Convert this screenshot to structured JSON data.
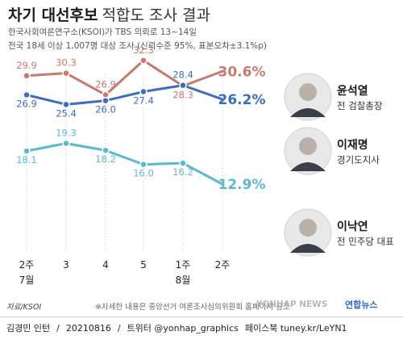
{
  "header": {
    "title_strong": "차기 대선후보",
    "title_light": "적합도 조사 결과",
    "subtitle_1": "한국사회여론연구소(KSOI)가 TBS 의뢰로 13~14일",
    "subtitle_2": "전국 18세 이상 1,007명 대상 조사 (신뢰수준 95%, 표본오차±3.1%p)"
  },
  "chart_data": {
    "type": "line",
    "categories": [
      {
        "label": "2주",
        "group": "7월"
      },
      {
        "label": "3",
        "group": ""
      },
      {
        "label": "4",
        "group": ""
      },
      {
        "label": "5",
        "group": ""
      },
      {
        "label": "1주",
        "group": "8월"
      },
      {
        "label": "2주",
        "group": ""
      }
    ],
    "series": [
      {
        "name": "윤석열",
        "role": "전 검찰총장",
        "color": "#c9786e",
        "values": [
          29.9,
          30.3,
          26.9,
          32.3,
          28.3,
          30.6
        ],
        "labels": [
          "29.9",
          "30.3",
          "26.9",
          "32.3",
          "28.3",
          "30.6%"
        ]
      },
      {
        "name": "이재명",
        "role": "경기도지사",
        "color": "#3b6cc0",
        "values": [
          26.9,
          25.4,
          26.0,
          27.4,
          28.4,
          26.2
        ],
        "labels": [
          "26.9",
          "25.4",
          "26.0",
          "27.4",
          "28.4",
          "26.2%"
        ]
      },
      {
        "name": "이낙연",
        "role": "전 민주당 대표",
        "color": "#5ab8cf",
        "values": [
          18.1,
          19.3,
          18.2,
          16.0,
          16.2,
          12.9
        ],
        "labels": [
          "18.1",
          "19.3",
          "18.2",
          "16.0",
          "16.2",
          "12.9%"
        ]
      }
    ]
  },
  "source": "자료/KSOI",
  "note": "※자세한 내용은 중앙선거 여론조사심의위원회 홈페이지 참조",
  "watermark": "YONHAP NEWS",
  "logo": "연합뉴스",
  "footer": {
    "author": "김경민 인턴",
    "date": "20210816",
    "twitter": "트위터 @yonhap_graphics",
    "facebook": "페이스북 tuney.kr/LeYN1"
  }
}
